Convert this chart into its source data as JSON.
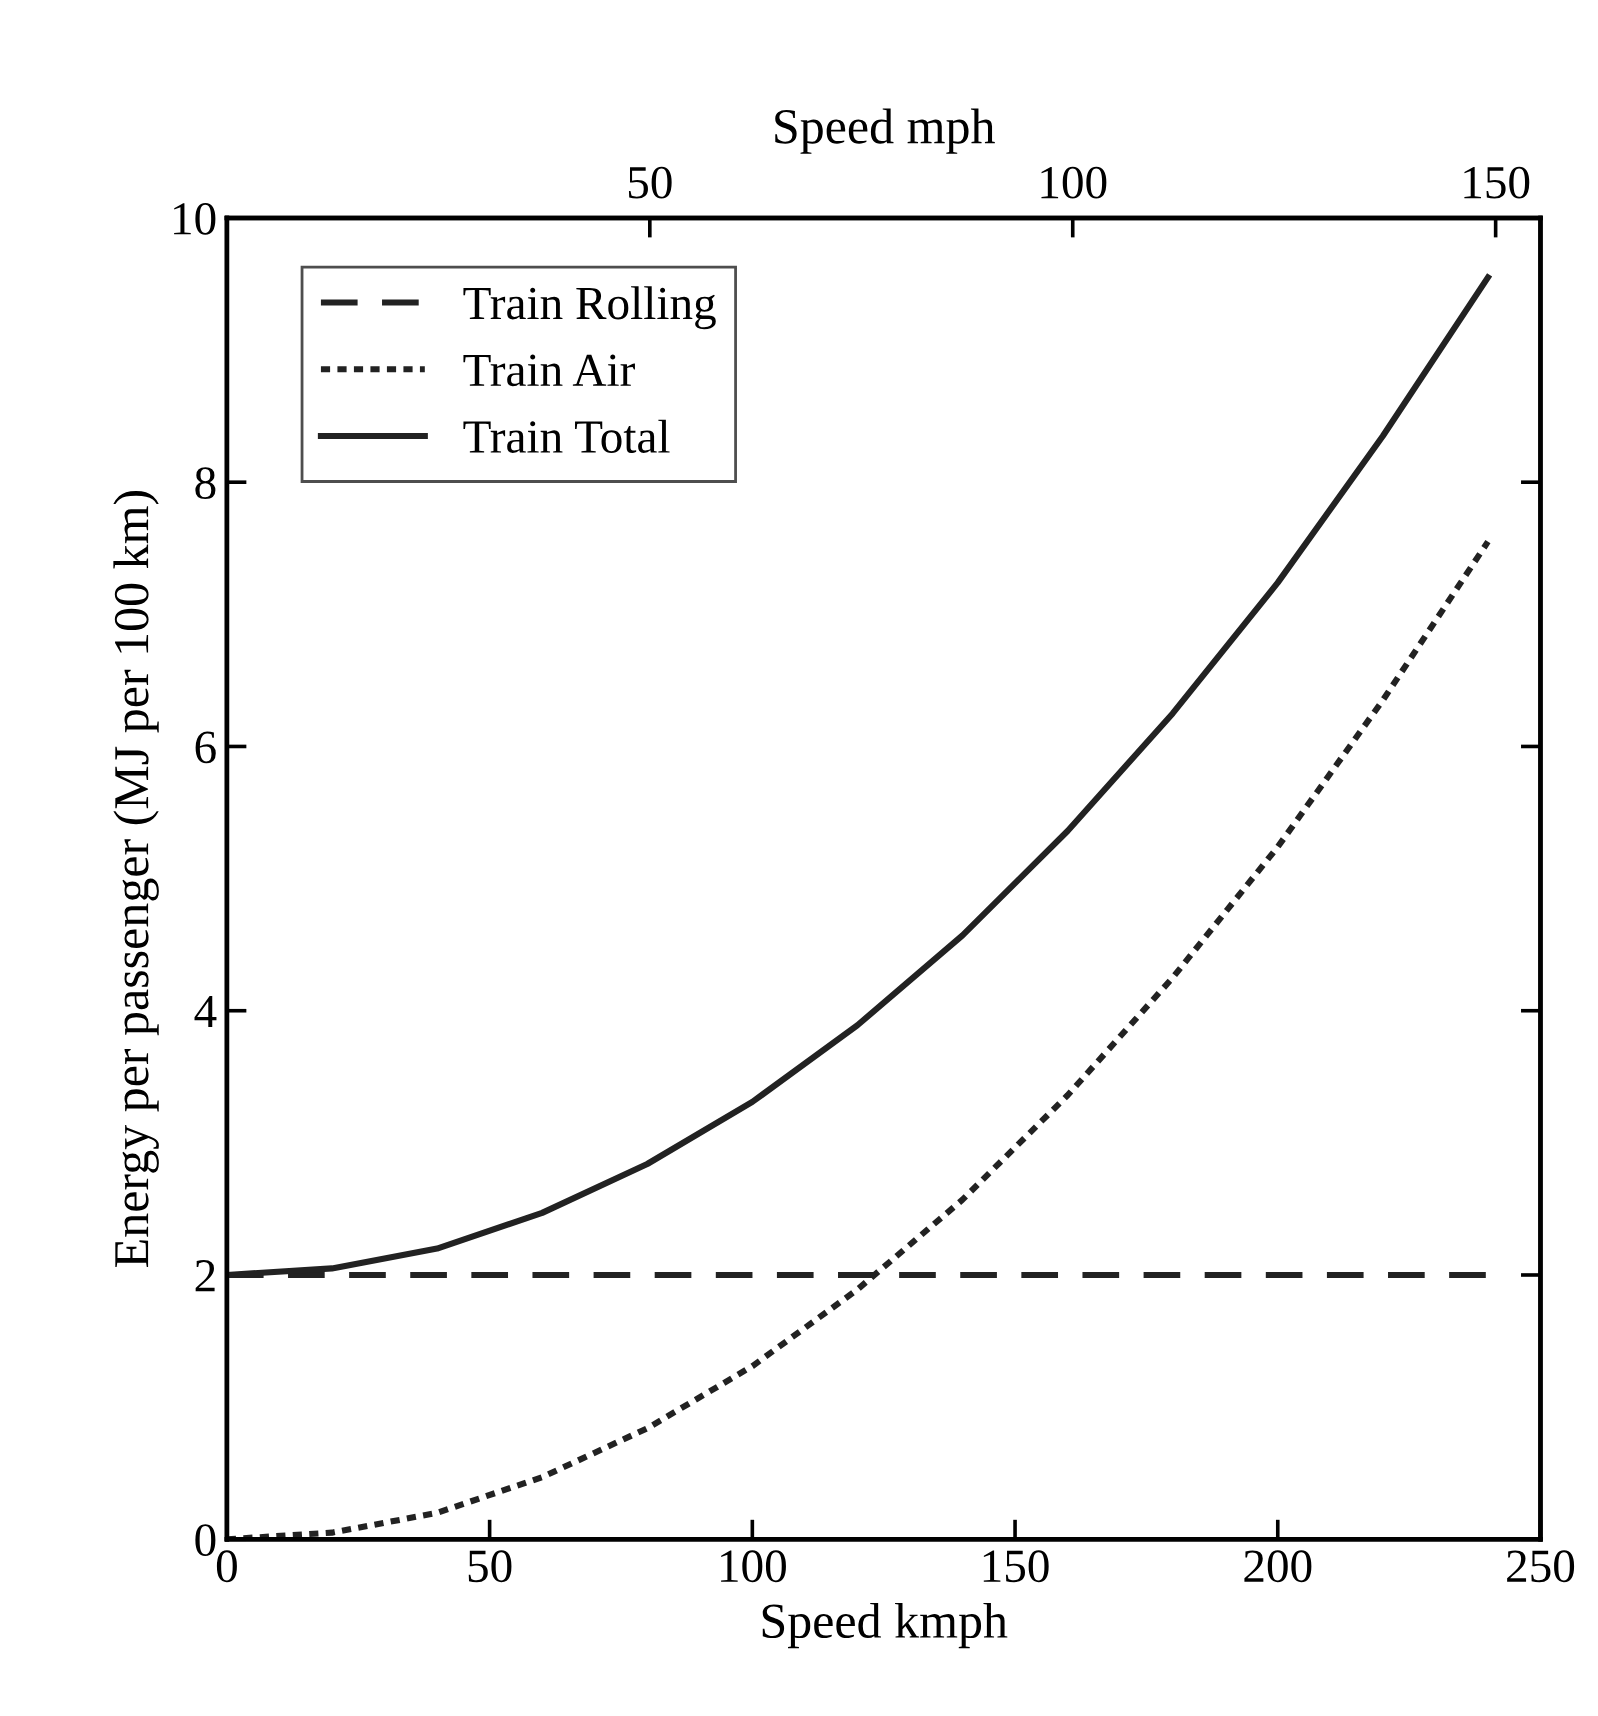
{
  "chart_data": {
    "type": "line",
    "xlabel": "Speed kmph",
    "ylabel": "Energy per passenger (MJ per 100 km)",
    "x2label": "Speed mph",
    "xlim": [
      0,
      250
    ],
    "xticks": [
      0,
      50,
      100,
      150,
      200,
      250
    ],
    "ylim": [
      0,
      10
    ],
    "yticks": [
      0,
      2,
      4,
      6,
      8,
      10
    ],
    "x2lim": [
      0,
      155.3
    ],
    "x2ticks": [
      50,
      100,
      150
    ],
    "grid": false,
    "legend": "top left",
    "marker": "none",
    "series": [
      {
        "name": "Train Rolling",
        "color": "#222222",
        "line_style": "dashed",
        "x": [
          0,
          240
        ],
        "values": [
          2,
          2
        ]
      },
      {
        "name": "Train Air",
        "color": "#222222",
        "line_style": "dotted",
        "x": [
          0,
          20,
          40,
          60,
          80,
          100,
          120,
          140,
          160,
          180,
          200,
          220,
          240
        ],
        "values": [
          0,
          0.05,
          0.2,
          0.47,
          0.84,
          1.31,
          1.89,
          2.57,
          3.36,
          4.25,
          5.24,
          6.35,
          7.55
        ]
      },
      {
        "name": "Train Total",
        "color": "#222222",
        "line_style": "solid",
        "x": [
          0,
          20,
          40,
          60,
          80,
          100,
          120,
          140,
          160,
          180,
          200,
          220,
          240
        ],
        "values": [
          2,
          2.05,
          2.2,
          2.47,
          2.84,
          3.31,
          3.89,
          4.57,
          5.36,
          6.25,
          7.24,
          8.35,
          9.55
        ]
      }
    ]
  }
}
